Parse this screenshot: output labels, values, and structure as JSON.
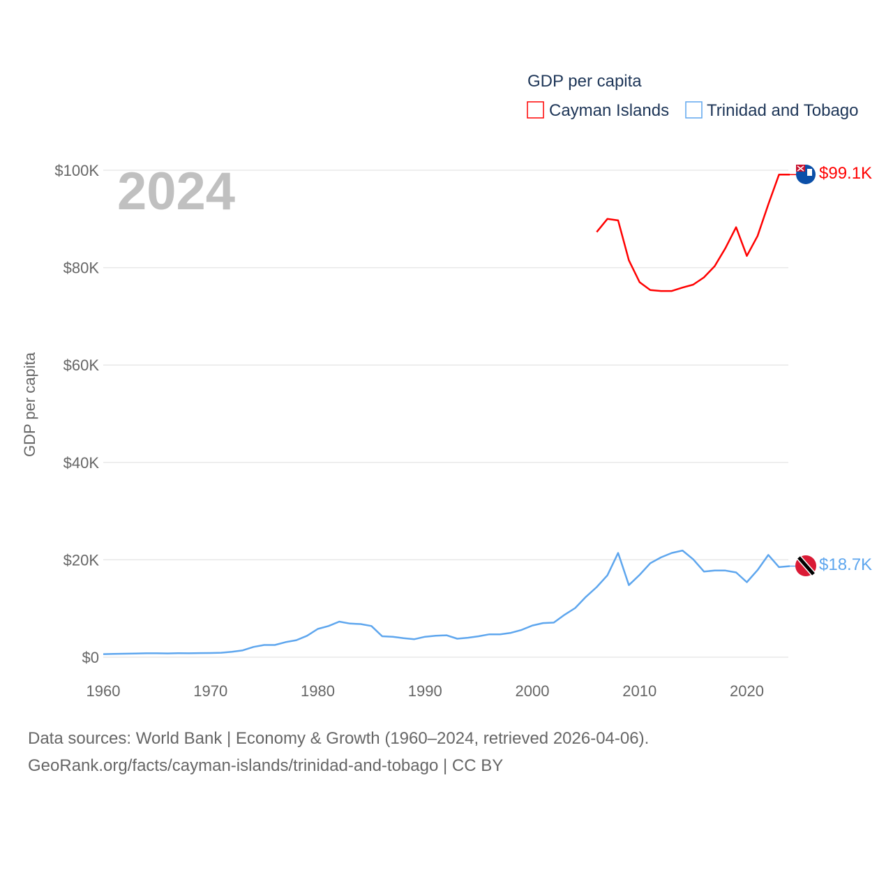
{
  "chart_data": {
    "type": "line",
    "title": "GDP per capita",
    "year_label": "2024",
    "ylabel": "GDP per capita",
    "xlabel": "",
    "xlim": [
      1960,
      2024
    ],
    "ylim": [
      0,
      100000
    ],
    "grid": true,
    "legend_placement": "top-right",
    "x_ticks": [
      "1960",
      "1970",
      "1980",
      "1990",
      "2000",
      "2010",
      "2020"
    ],
    "y_ticks": [
      {
        "value": 0,
        "label": "$0"
      },
      {
        "value": 20000,
        "label": "$20K"
      },
      {
        "value": 40000,
        "label": "$40K"
      },
      {
        "value": 60000,
        "label": "$60K"
      },
      {
        "value": 80000,
        "label": "$80K"
      },
      {
        "value": 100000,
        "label": "$100K"
      }
    ],
    "series": [
      {
        "name": "Cayman Islands",
        "color": "#ff0000",
        "end_label": "$99.1K",
        "start_year": 2006,
        "values": [
          87300,
          90000,
          89700,
          81500,
          77000,
          75400,
          75200,
          75200,
          75900,
          76500,
          78000,
          80300,
          84000,
          88300,
          82400,
          86500,
          93000,
          99100,
          99100
        ]
      },
      {
        "name": "Trinidad and Tobago",
        "color": "#5ea6ee",
        "end_label": "$18.7K",
        "start_year": 1960,
        "values": [
          630,
          680,
          720,
          760,
          800,
          800,
          780,
          830,
          800,
          840,
          860,
          920,
          1100,
          1400,
          2100,
          2500,
          2500,
          3100,
          3500,
          4400,
          5800,
          6400,
          7300,
          6900,
          6800,
          6400,
          4300,
          4200,
          3900,
          3700,
          4200,
          4400,
          4500,
          3800,
          4000,
          4300,
          4700,
          4700,
          5000,
          5600,
          6500,
          7000,
          7100,
          8700,
          10100,
          12400,
          14400,
          16800,
          21400,
          14800,
          16900,
          19300,
          20500,
          21400,
          21900,
          20100,
          17600,
          17800,
          17800,
          17400,
          15400,
          17900,
          21000,
          18500,
          18700
        ]
      }
    ]
  },
  "footer": {
    "line1": "Data sources: World Bank | Economy & Growth (1960–2024, retrieved 2026-04-06).",
    "line2": "GeoRank.org/facts/cayman-islands/trinidad-and-tobago | CC BY"
  }
}
